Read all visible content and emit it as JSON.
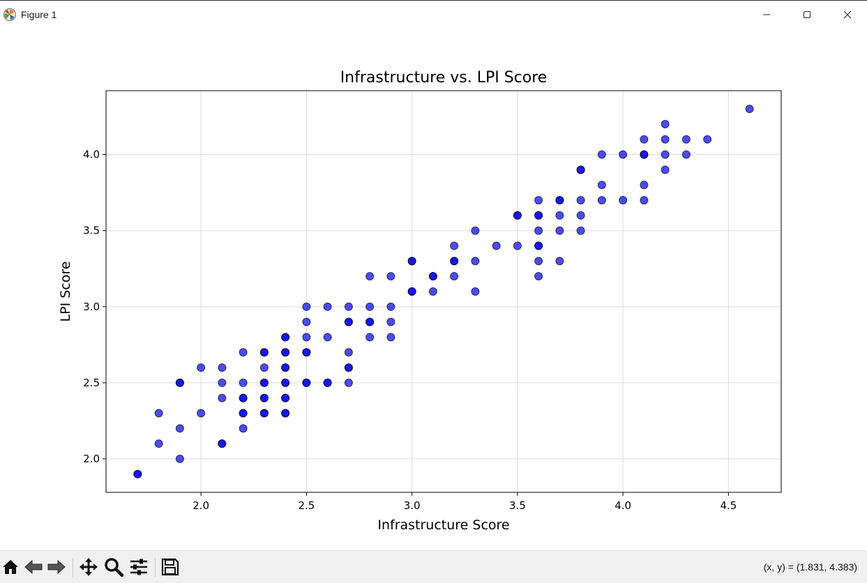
{
  "window": {
    "title": "Figure 1",
    "icons": [
      "matplotlib-icon",
      "minimize-icon",
      "maximize-icon",
      "close-icon"
    ]
  },
  "toolbar": {
    "buttons": [
      "home-icon",
      "back-arrow-icon",
      "forward-arrow-icon",
      "pan-icon",
      "zoom-icon",
      "configure-subplots-icon",
      "save-icon"
    ],
    "coordinates": "(x, y) = (1.831, 4.383)"
  },
  "chart_data": {
    "type": "scatter",
    "title": "Infrastructure vs. LPI Score",
    "xlabel": "Infrastructure Score",
    "ylabel": "LPI Score",
    "xlim": [
      1.55,
      4.75
    ],
    "ylim": [
      1.78,
      4.42
    ],
    "xticks": [
      "2.0",
      "2.5",
      "3.0",
      "3.5",
      "4.0",
      "4.5"
    ],
    "yticks": [
      "2.0",
      "2.5",
      "3.0",
      "3.5",
      "4.0"
    ],
    "grid": true,
    "marker_color": "#0000ff",
    "marker_edge": "#000000",
    "marker_alpha": 0.7,
    "points": [
      [
        1.7,
        1.9
      ],
      [
        1.7,
        1.9
      ],
      [
        1.8,
        2.3
      ],
      [
        1.8,
        2.1
      ],
      [
        1.9,
        2.5
      ],
      [
        1.9,
        2.5
      ],
      [
        1.9,
        2.2
      ],
      [
        1.9,
        2.0
      ],
      [
        2.0,
        2.6
      ],
      [
        2.0,
        2.3
      ],
      [
        2.1,
        2.6
      ],
      [
        2.1,
        2.5
      ],
      [
        2.1,
        2.4
      ],
      [
        2.1,
        2.1
      ],
      [
        2.1,
        2.1
      ],
      [
        2.2,
        2.7
      ],
      [
        2.2,
        2.5
      ],
      [
        2.2,
        2.4
      ],
      [
        2.2,
        2.4
      ],
      [
        2.2,
        2.3
      ],
      [
        2.2,
        2.3
      ],
      [
        2.2,
        2.2
      ],
      [
        2.3,
        2.7
      ],
      [
        2.3,
        2.7
      ],
      [
        2.3,
        2.6
      ],
      [
        2.3,
        2.5
      ],
      [
        2.3,
        2.5
      ],
      [
        2.3,
        2.4
      ],
      [
        2.3,
        2.4
      ],
      [
        2.3,
        2.3
      ],
      [
        2.3,
        2.3
      ],
      [
        2.4,
        2.8
      ],
      [
        2.4,
        2.8
      ],
      [
        2.4,
        2.7
      ],
      [
        2.4,
        2.7
      ],
      [
        2.4,
        2.6
      ],
      [
        2.4,
        2.6
      ],
      [
        2.4,
        2.5
      ],
      [
        2.4,
        2.5
      ],
      [
        2.4,
        2.4
      ],
      [
        2.4,
        2.4
      ],
      [
        2.4,
        2.3
      ],
      [
        2.4,
        2.3
      ],
      [
        2.5,
        3.0
      ],
      [
        2.5,
        2.9
      ],
      [
        2.5,
        2.8
      ],
      [
        2.5,
        2.7
      ],
      [
        2.5,
        2.7
      ],
      [
        2.5,
        2.5
      ],
      [
        2.5,
        2.5
      ],
      [
        2.6,
        3.0
      ],
      [
        2.6,
        2.8
      ],
      [
        2.6,
        2.5
      ],
      [
        2.6,
        2.5
      ],
      [
        2.7,
        3.0
      ],
      [
        2.7,
        2.9
      ],
      [
        2.7,
        2.9
      ],
      [
        2.7,
        2.7
      ],
      [
        2.7,
        2.6
      ],
      [
        2.7,
        2.6
      ],
      [
        2.7,
        2.5
      ],
      [
        2.8,
        3.2
      ],
      [
        2.8,
        3.0
      ],
      [
        2.8,
        2.9
      ],
      [
        2.8,
        2.9
      ],
      [
        2.8,
        2.8
      ],
      [
        2.9,
        3.2
      ],
      [
        2.9,
        3.0
      ],
      [
        2.9,
        2.9
      ],
      [
        2.9,
        2.8
      ],
      [
        3.0,
        3.3
      ],
      [
        3.0,
        3.3
      ],
      [
        3.0,
        3.1
      ],
      [
        3.0,
        3.1
      ],
      [
        3.1,
        3.2
      ],
      [
        3.1,
        3.2
      ],
      [
        3.1,
        3.1
      ],
      [
        3.2,
        3.4
      ],
      [
        3.2,
        3.3
      ],
      [
        3.2,
        3.3
      ],
      [
        3.2,
        3.2
      ],
      [
        3.3,
        3.5
      ],
      [
        3.3,
        3.3
      ],
      [
        3.3,
        3.1
      ],
      [
        3.4,
        3.4
      ],
      [
        3.5,
        3.6
      ],
      [
        3.5,
        3.6
      ],
      [
        3.5,
        3.4
      ],
      [
        3.6,
        3.7
      ],
      [
        3.6,
        3.6
      ],
      [
        3.6,
        3.6
      ],
      [
        3.6,
        3.5
      ],
      [
        3.6,
        3.4
      ],
      [
        3.6,
        3.4
      ],
      [
        3.6,
        3.3
      ],
      [
        3.6,
        3.2
      ],
      [
        3.7,
        3.7
      ],
      [
        3.7,
        3.7
      ],
      [
        3.7,
        3.6
      ],
      [
        3.7,
        3.5
      ],
      [
        3.7,
        3.3
      ],
      [
        3.8,
        3.9
      ],
      [
        3.8,
        3.9
      ],
      [
        3.8,
        3.7
      ],
      [
        3.8,
        3.6
      ],
      [
        3.8,
        3.5
      ],
      [
        3.9,
        4.0
      ],
      [
        3.9,
        3.8
      ],
      [
        3.9,
        3.7
      ],
      [
        4.0,
        4.0
      ],
      [
        4.0,
        3.7
      ],
      [
        4.1,
        4.1
      ],
      [
        4.1,
        4.0
      ],
      [
        4.1,
        4.0
      ],
      [
        4.1,
        3.8
      ],
      [
        4.1,
        3.7
      ],
      [
        4.2,
        4.2
      ],
      [
        4.2,
        4.1
      ],
      [
        4.2,
        4.0
      ],
      [
        4.2,
        3.9
      ],
      [
        4.3,
        4.1
      ],
      [
        4.3,
        4.0
      ],
      [
        4.4,
        4.1
      ],
      [
        4.6,
        4.3
      ]
    ]
  }
}
